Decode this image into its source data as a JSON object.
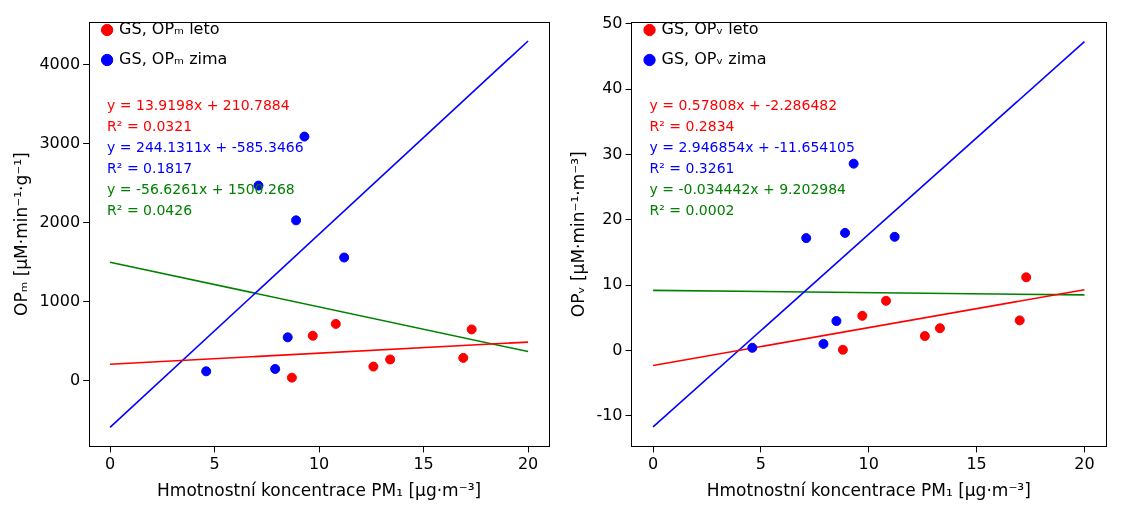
{
  "chart_data": [
    {
      "type": "scatter",
      "xlabel": "Hmotnostní koncentrace PM₁ [µg·m⁻³]",
      "ylabel": "OPₘ [µM·min⁻¹·g⁻¹]",
      "xlim": [
        -1,
        21
      ],
      "xticks": [
        0,
        5,
        10,
        15,
        20
      ],
      "ylim": [
        -830,
        4540
      ],
      "yticks": [
        0,
        1000,
        2000,
        3000,
        4000
      ],
      "grid": false,
      "legend": "top left",
      "marker": "circle",
      "annotations": [
        "y = 13.9198x + 210.7884",
        "R² = 0.0321",
        "y = 244.1311x + -585.3466",
        "R² = 0.1817",
        "y = -56.6261x + 1500.268",
        "R² = 0.0426"
      ],
      "series": [
        {
          "name": "GS, OPₘ leto",
          "color": "#ff0000",
          "x": [
            8.7,
            9.7,
            10.8,
            12.6,
            13.4,
            16.9,
            17.3
          ],
          "values": [
            40,
            570,
            720,
            180,
            270,
            290,
            650
          ]
        },
        {
          "name": "GS, OPₘ zima",
          "color": "#0000ff",
          "x": [
            4.6,
            7.9,
            8.5,
            7.1,
            8.9,
            11.2,
            9.3
          ],
          "values": [
            120,
            150,
            550,
            2470,
            2030,
            1560,
            3090
          ]
        },
        {
          "type": "line",
          "marker": "none",
          "color": "#ff0000",
          "x": [
            0,
            20
          ],
          "values": [
            210,
            490
          ]
        },
        {
          "type": "line",
          "marker": "none",
          "color": "#0000ff",
          "x": [
            0,
            20
          ],
          "values": [
            -590,
            4300
          ]
        },
        {
          "type": "line",
          "marker": "none",
          "color": "#008000",
          "x": [
            0,
            20
          ],
          "values": [
            1500,
            370
          ]
        }
      ]
    },
    {
      "type": "scatter",
      "xlabel": "Hmotnostní koncentrace PM₁ [µg·m⁻³]",
      "ylabel": "OPᵥ [µM·min⁻¹·m⁻³]",
      "xlim": [
        -1,
        21
      ],
      "xticks": [
        0,
        5,
        10,
        15,
        20
      ],
      "ylim": [
        -14.7,
        50.3
      ],
      "yticks": [
        -10,
        0,
        10,
        20,
        30,
        40,
        50
      ],
      "grid": false,
      "legend": "top left",
      "marker": "circle",
      "annotations": [
        "y = 0.57808x + -2.286482",
        "R² = 0.2834",
        "y = 2.946854x + -11.654105",
        "R² = 0.3261",
        "y = -0.034442x + 9.202984",
        "R² = 0.0002"
      ],
      "series": [
        {
          "name": "GS, OPᵥ leto",
          "color": "#ff0000",
          "x": [
            8.8,
            9.7,
            10.8,
            12.6,
            13.3,
            17.0,
            17.3
          ],
          "values": [
            0.1,
            5.3,
            7.6,
            2.2,
            3.4,
            4.6,
            11.2
          ]
        },
        {
          "name": "GS, OPᵥ zima",
          "color": "#0000ff",
          "x": [
            4.6,
            7.9,
            8.5,
            7.1,
            8.9,
            11.2,
            9.3
          ],
          "values": [
            0.4,
            1.0,
            4.5,
            17.2,
            18.0,
            17.4,
            28.6
          ]
        },
        {
          "type": "line",
          "marker": "none",
          "color": "#ff0000",
          "x": [
            0,
            20
          ],
          "values": [
            -2.3,
            9.3
          ]
        },
        {
          "type": "line",
          "marker": "none",
          "color": "#0000ff",
          "x": [
            0,
            20
          ],
          "values": [
            -11.7,
            47.3
          ]
        },
        {
          "type": "line",
          "marker": "none",
          "color": "#008000",
          "x": [
            0,
            20
          ],
          "values": [
            9.2,
            8.5
          ]
        }
      ]
    }
  ]
}
